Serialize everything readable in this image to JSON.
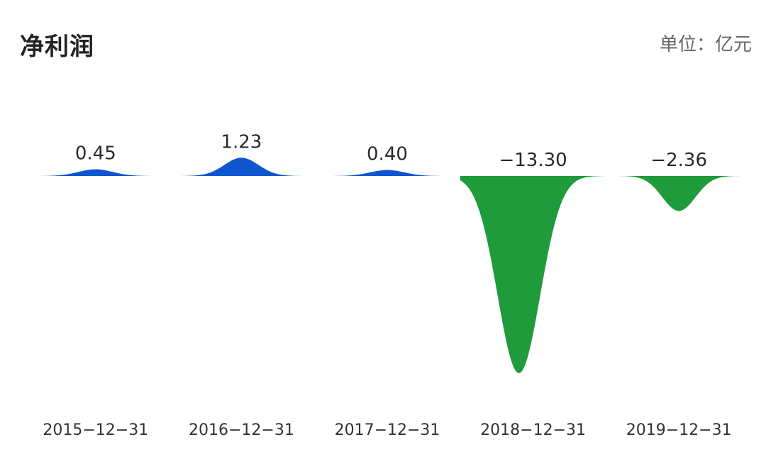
{
  "header": {
    "title": "净利润",
    "unit": "单位：亿元"
  },
  "colors": {
    "positive": "#0F55CF",
    "negative": "#1F9B3B"
  },
  "chart_data": {
    "type": "area",
    "title": "净利润",
    "unit": "亿元",
    "categories": [
      "2015-12-31",
      "2016-12-31",
      "2017-12-31",
      "2018-12-31",
      "2019-12-31"
    ],
    "values": [
      0.45,
      1.23,
      0.4,
      -13.3,
      -2.36
    ],
    "value_labels": [
      "0.45",
      "1.23",
      "0.40",
      "−13.30",
      "−2.36"
    ],
    "category_labels": [
      "2015−12−31",
      "2016−12−31",
      "2017−12−31",
      "2018−12−31",
      "2019−12−31"
    ],
    "grid": false,
    "legend": "none"
  }
}
